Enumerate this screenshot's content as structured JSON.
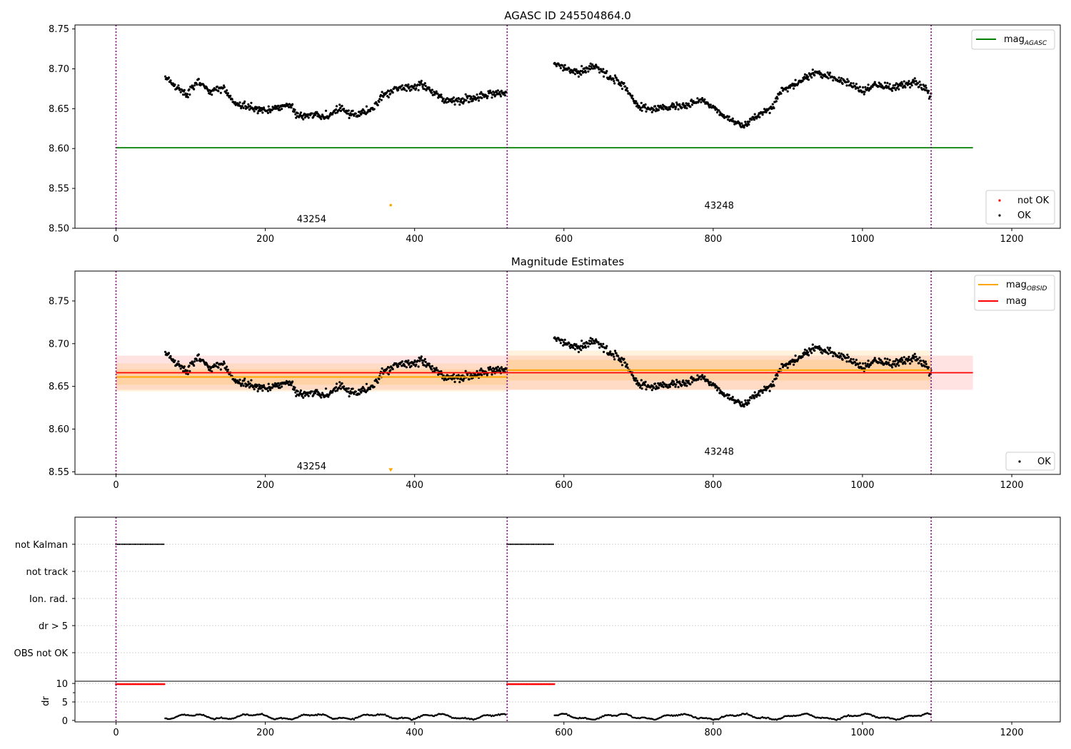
{
  "figure": {
    "title": "AGASC ID 245504864.0",
    "panel2_title": "Magnitude Estimates"
  },
  "chart_data": [
    {
      "panel": "agasc-magnitude",
      "type": "scatter",
      "title": "AGASC ID 245504864.0",
      "xlim": [
        -55,
        1265
      ],
      "ylim": [
        8.5,
        8.755
      ],
      "xticks": [
        0,
        200,
        400,
        600,
        800,
        1000,
        1200
      ],
      "yticks": [
        8.5,
        8.55,
        8.6,
        8.65,
        8.7,
        8.75
      ],
      "obs_boundaries": [
        0,
        524,
        1092
      ],
      "obsids": [
        {
          "label": "43254",
          "x": 262,
          "y": 8.512
        },
        {
          "label": "43248",
          "x": 808,
          "y": 8.529
        }
      ],
      "lines": [
        {
          "name": "mag_AGASC",
          "color": "#008000",
          "y": 8.601,
          "x": [
            0,
            1148
          ]
        }
      ],
      "marker": {
        "x": 368,
        "y": 8.529,
        "color": "#ffa500"
      },
      "legend_upper": {
        "label": "mag",
        "sub": "AGASC",
        "color": "#008000"
      },
      "legend_lower": [
        {
          "label": "not OK",
          "color": "#ff0000"
        },
        {
          "label": "OK",
          "color": "#000000"
        }
      ]
    },
    {
      "panel": "magnitude-estimates",
      "type": "scatter",
      "title": "Magnitude Estimates",
      "xlim": [
        -55,
        1265
      ],
      "ylim": [
        8.547,
        8.785
      ],
      "xticks": [
        0,
        200,
        400,
        600,
        800,
        1000,
        1200
      ],
      "yticks": [
        8.55,
        8.6,
        8.65,
        8.7,
        8.75
      ],
      "obs_boundaries": [
        0,
        524,
        1092
      ],
      "obsids": [
        {
          "label": "43254",
          "x": 262,
          "y": 8.557
        },
        {
          "label": "43248",
          "x": 808,
          "y": 8.574
        }
      ],
      "mag": {
        "value": 8.666,
        "band": [
          8.646,
          8.686
        ],
        "x": [
          0,
          1148
        ],
        "color": "#ff0000"
      },
      "mag_obsid": [
        {
          "x": [
            0,
            524
          ],
          "value": 8.661,
          "band_outer": [
            8.644,
            8.677
          ],
          "band_inner": [
            8.652,
            8.67
          ]
        },
        {
          "x": [
            524,
            1092
          ],
          "value": 8.669,
          "band_outer": [
            8.646,
            8.692
          ],
          "band_inner": [
            8.657,
            8.681
          ]
        }
      ],
      "marker": {
        "x": 368,
        "y": 8.55,
        "color": "#ffa500"
      },
      "legend_upper": [
        {
          "label": "mag",
          "sub": "OBSID",
          "color": "#ffa500"
        },
        {
          "label": "mag",
          "sub": "",
          "color": "#ff0000"
        }
      ],
      "legend_lower": [
        {
          "label": "OK",
          "color": "#000000"
        }
      ]
    },
    {
      "panel": "flags",
      "type": "scatter",
      "xlim": [
        -55,
        1265
      ],
      "categories": [
        "not Kalman",
        "not track",
        "Ion. rad.",
        "dr > 5",
        "OBS not OK"
      ],
      "flag_runs": [
        {
          "category": "not Kalman",
          "x": [
            0,
            65
          ]
        },
        {
          "category": "not Kalman",
          "x": [
            524,
            587
          ]
        }
      ],
      "obs_boundaries": [
        0,
        524,
        1092
      ]
    },
    {
      "panel": "dr",
      "type": "scatter",
      "ylabel": "dr",
      "xlim": [
        -55,
        1265
      ],
      "ylim": [
        -0.4,
        10.6
      ],
      "xticks": [
        0,
        200,
        400,
        600,
        800,
        1000,
        1200
      ],
      "yticks": [
        0,
        5,
        10
      ],
      "red_runs": [
        {
          "x": [
            0,
            65
          ],
          "y": 9.8
        },
        {
          "x": [
            524,
            587
          ],
          "y": 9.8
        }
      ],
      "obs_boundaries": [
        0,
        524,
        1092
      ]
    }
  ]
}
